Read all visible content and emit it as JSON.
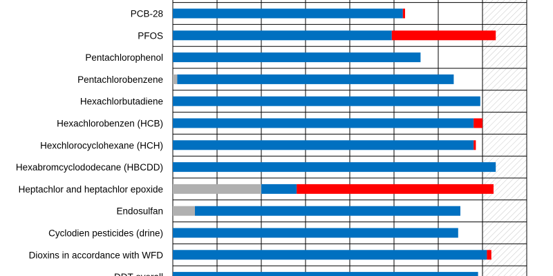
{
  "chart_data": {
    "type": "bar",
    "orientation": "horizontal",
    "stacked": true,
    "title": "",
    "xlabel": "",
    "ylabel": "",
    "xlim": [
      0,
      8
    ],
    "grid": true,
    "legend": "none",
    "categories": [
      "PCB-28",
      "PFOS",
      "Pentachlorophenol",
      "Pentachlorobenzene",
      "Hexachlorbutadiene",
      "Hexachlorobenzen (HCB)",
      "Hexchlorocyclohexane (HCH)",
      "Hexabromcyclododecane (HBCDD)",
      "Heptachlor and heptachlor epoxide",
      "Endosulfan",
      "Cyclodien pesticides (drine)",
      "Dioxins in accordance with WFD",
      "DDT overall"
    ],
    "series": [
      {
        "color": "#b0b0b0",
        "values": [
          0,
          0,
          0,
          0.1,
          0,
          0,
          0,
          0,
          2.0,
          0.5,
          0,
          0,
          0
        ]
      },
      {
        "color": "#0070c0",
        "values": [
          5.2,
          4.95,
          5.6,
          6.25,
          6.95,
          6.8,
          6.8,
          7.3,
          0.8,
          6.0,
          6.45,
          7.1,
          6.9
        ]
      },
      {
        "color": "#ff0000",
        "values": [
          0.05,
          2.35,
          0,
          0,
          0,
          0.2,
          0.05,
          0,
          4.45,
          0,
          0,
          0.1,
          0
        ]
      }
    ],
    "hatched_region": {
      "from": 7.0,
      "to": 8.0,
      "pattern": "diagonal",
      "color": "#bfbfbf"
    }
  }
}
